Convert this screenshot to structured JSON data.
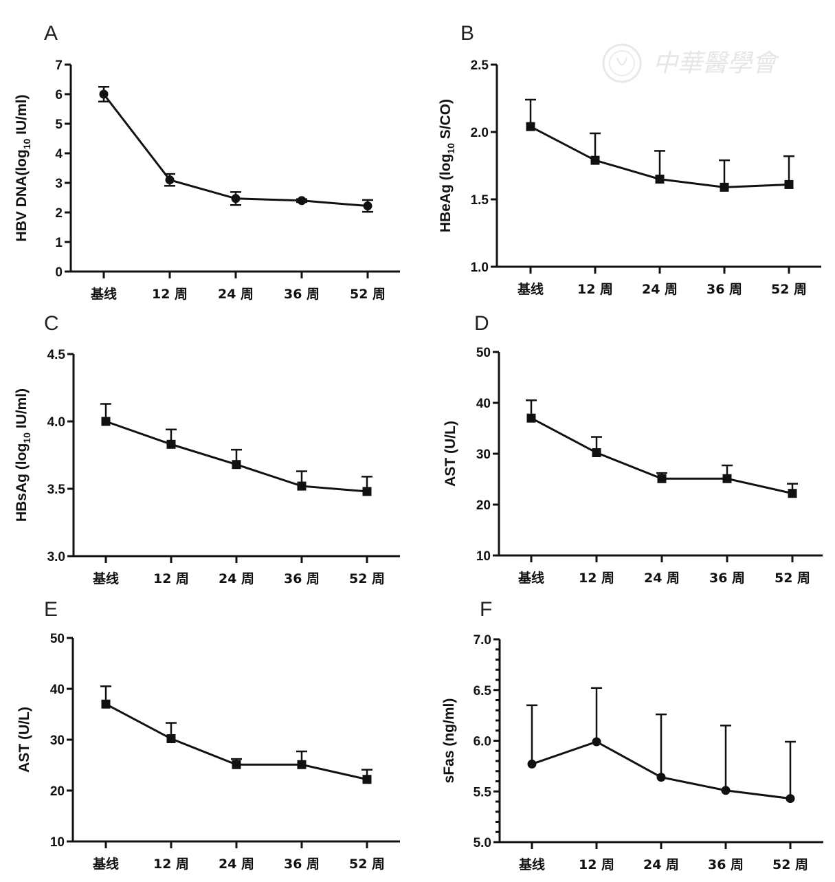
{
  "figure": {
    "watermark": {
      "text": "中華醫學會",
      "icon": "seal-emblem-icon"
    }
  },
  "chart_data": [
    {
      "panel": "A",
      "type": "line",
      "marker": "circle",
      "error_bars": "both",
      "categories": [
        "基线",
        "12 周",
        "24 周",
        "36 周",
        "52 周"
      ],
      "series": [
        {
          "name": "HBV DNA",
          "values": [
            6.0,
            3.1,
            2.47,
            2.4,
            2.22
          ],
          "errors": [
            0.25,
            0.2,
            0.22,
            0.05,
            0.2
          ]
        }
      ],
      "ylabel_parts": [
        "HBV DNA(log",
        "10",
        " IU/ml)"
      ],
      "ylabel": "HBV DNA(log10 IU/ml)",
      "ylim": [
        0,
        7
      ],
      "yticks": [
        0,
        1,
        2,
        3,
        4,
        5,
        6,
        7
      ],
      "ytick_labels": [
        "0",
        "1",
        "2",
        "3",
        "4",
        "5",
        "6",
        "7"
      ],
      "minor_yticks": [],
      "grid": false
    },
    {
      "panel": "B",
      "type": "line",
      "marker": "square",
      "error_bars": "upper",
      "categories": [
        "基线",
        "12 周",
        "24 周",
        "36 周",
        "52 周"
      ],
      "series": [
        {
          "name": "HBeAg",
          "values": [
            2.04,
            1.79,
            1.65,
            1.59,
            1.61
          ],
          "errors": [
            0.2,
            0.2,
            0.21,
            0.2,
            0.21
          ]
        }
      ],
      "ylabel_parts": [
        "HBeAg (log",
        "10",
        " S/CO)"
      ],
      "ylabel": "HBeAg (log10 S/CO)",
      "ylim": [
        1.0,
        2.5
      ],
      "yticks": [
        1.0,
        1.5,
        2.0,
        2.5
      ],
      "ytick_labels": [
        "1.0",
        "1.5",
        "2.0",
        "2.5"
      ],
      "minor_yticks": [],
      "grid": false
    },
    {
      "panel": "C",
      "type": "line",
      "marker": "square",
      "error_bars": "upper",
      "categories": [
        "基线",
        "12 周",
        "24 周",
        "36 周",
        "52 周"
      ],
      "series": [
        {
          "name": "HBsAg",
          "values": [
            4.0,
            3.83,
            3.68,
            3.52,
            3.48
          ],
          "errors": [
            0.13,
            0.11,
            0.11,
            0.11,
            0.11
          ]
        }
      ],
      "ylabel_parts": [
        "HBsAg (log",
        "10",
        " IU/ml)"
      ],
      "ylabel": "HBsAg (log10 IU/ml)",
      "ylim": [
        3.0,
        4.5
      ],
      "yticks": [
        3.0,
        3.5,
        4.0,
        4.5
      ],
      "ytick_labels": [
        "3.0",
        "3.5",
        "4.0",
        "4.5"
      ],
      "minor_yticks": [],
      "grid": false
    },
    {
      "panel": "D",
      "type": "line",
      "marker": "square",
      "error_bars": "upper",
      "categories": [
        "基线",
        "12 周",
        "24 周",
        "36 周",
        "52 周"
      ],
      "series": [
        {
          "name": "AST",
          "values": [
            37.0,
            30.2,
            25.1,
            25.1,
            22.2
          ],
          "errors": [
            3.5,
            3.1,
            1.1,
            2.6,
            1.9
          ]
        }
      ],
      "ylabel_parts": [
        "AST (U/L)",
        "",
        ""
      ],
      "ylabel": "AST (U/L)",
      "ylim": [
        10,
        50
      ],
      "yticks": [
        10,
        20,
        30,
        40,
        50
      ],
      "ytick_labels": [
        "10",
        "20",
        "30",
        "40",
        "50"
      ],
      "minor_yticks": [],
      "grid": false
    },
    {
      "panel": "E",
      "type": "line",
      "marker": "square",
      "error_bars": "upper",
      "categories": [
        "基线",
        "12 周",
        "24 周",
        "36 周",
        "52 周"
      ],
      "series": [
        {
          "name": "AST",
          "values": [
            37.0,
            30.2,
            25.1,
            25.1,
            22.2
          ],
          "errors": [
            3.5,
            3.1,
            1.1,
            2.6,
            1.9
          ]
        }
      ],
      "ylabel_parts": [
        "AST (U/L)",
        "",
        ""
      ],
      "ylabel": "AST (U/L)",
      "ylim": [
        10,
        50
      ],
      "yticks": [
        10,
        20,
        30,
        40,
        50
      ],
      "ytick_labels": [
        "10",
        "20",
        "30",
        "40",
        "50"
      ],
      "minor_yticks": [],
      "grid": false
    },
    {
      "panel": "F",
      "type": "line",
      "marker": "circle",
      "error_bars": "upper",
      "categories": [
        "基线",
        "12 周",
        "24 周",
        "36 周",
        "52 周"
      ],
      "series": [
        {
          "name": "sFas",
          "values": [
            5.77,
            5.99,
            5.64,
            5.51,
            5.43
          ],
          "errors": [
            0.58,
            0.53,
            0.62,
            0.64,
            0.56
          ]
        }
      ],
      "ylabel_parts": [
        "sFas (ng/ml)",
        "",
        ""
      ],
      "ylabel": "sFas (ng/ml)",
      "ylim": [
        5.0,
        7.0
      ],
      "yticks": [
        5.0,
        5.5,
        6.0,
        6.5,
        7.0
      ],
      "ytick_labels": [
        "5.0",
        "5.5",
        "6.0",
        "6.5",
        "7.0"
      ],
      "minor_yticks": [
        5.1,
        5.2,
        5.3,
        5.4,
        5.6,
        5.7,
        5.8,
        5.9,
        6.1,
        6.2,
        6.3,
        6.4,
        6.6,
        6.7,
        6.8,
        6.9
      ],
      "grid": false
    }
  ]
}
